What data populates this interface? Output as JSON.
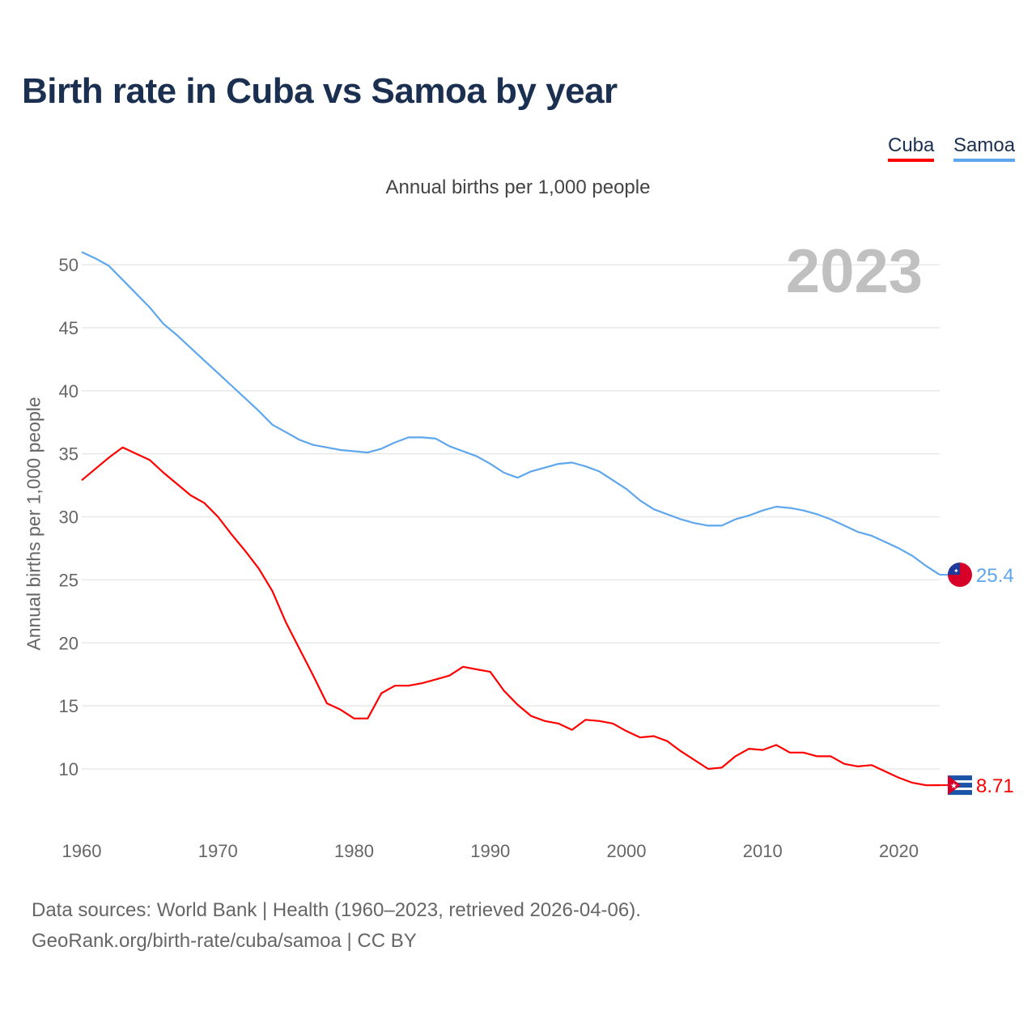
{
  "chart_data": {
    "type": "line",
    "title": "Birth rate in Cuba vs Samoa by year",
    "subtitle": "Annual births per 1,000 people",
    "ylabel": "Annual births per 1,000 people",
    "xlabel": "",
    "year_label": "2023",
    "xlim": [
      1960,
      2023
    ],
    "ylim": [
      6,
      52
    ],
    "yticks": [
      10,
      15,
      20,
      25,
      30,
      35,
      40,
      45,
      50
    ],
    "xticks": [
      1960,
      1970,
      1980,
      1990,
      2000,
      2010,
      2020
    ],
    "grid": true,
    "legend_position": "top-right",
    "x": [
      1960,
      1961,
      1962,
      1963,
      1964,
      1965,
      1966,
      1967,
      1968,
      1969,
      1970,
      1971,
      1972,
      1973,
      1974,
      1975,
      1976,
      1977,
      1978,
      1979,
      1980,
      1981,
      1982,
      1983,
      1984,
      1985,
      1986,
      1987,
      1988,
      1989,
      1990,
      1991,
      1992,
      1993,
      1994,
      1995,
      1996,
      1997,
      1998,
      1999,
      2000,
      2001,
      2002,
      2003,
      2004,
      2005,
      2006,
      2007,
      2008,
      2009,
      2010,
      2011,
      2012,
      2013,
      2014,
      2015,
      2016,
      2017,
      2018,
      2019,
      2020,
      2021,
      2022,
      2023
    ],
    "series": [
      {
        "name": "Cuba",
        "color": "#ff0000",
        "end_label": "8.71",
        "values": [
          32.9,
          33.8,
          34.7,
          35.5,
          35.0,
          34.5,
          33.5,
          32.6,
          31.7,
          31.1,
          30.0,
          28.6,
          27.3,
          25.9,
          24.1,
          21.6,
          19.5,
          17.4,
          15.2,
          14.7,
          14.0,
          14.0,
          16.0,
          16.6,
          16.6,
          16.8,
          17.1,
          17.4,
          18.1,
          17.9,
          17.7,
          16.2,
          15.1,
          14.2,
          13.8,
          13.6,
          13.1,
          13.9,
          13.8,
          13.6,
          13.0,
          12.5,
          12.6,
          12.2,
          11.4,
          10.7,
          10.0,
          10.1,
          11.0,
          11.6,
          11.5,
          11.9,
          11.3,
          11.3,
          11.0,
          11.0,
          10.4,
          10.2,
          10.3,
          9.8,
          9.3,
          8.9,
          8.7,
          8.71
        ]
      },
      {
        "name": "Samoa",
        "color": "#5ea6ee",
        "end_label": "25.4",
        "values": [
          51.0,
          50.5,
          49.9,
          48.8,
          47.7,
          46.6,
          45.3,
          44.4,
          43.4,
          42.4,
          41.4,
          40.4,
          39.4,
          38.4,
          37.3,
          36.7,
          36.1,
          35.7,
          35.5,
          35.3,
          35.2,
          35.1,
          35.4,
          35.9,
          36.3,
          36.3,
          36.2,
          35.6,
          35.2,
          34.8,
          34.2,
          33.5,
          33.1,
          33.6,
          33.9,
          34.2,
          34.3,
          34.0,
          33.6,
          32.9,
          32.2,
          31.3,
          30.6,
          30.2,
          29.8,
          29.5,
          29.3,
          29.3,
          29.8,
          30.1,
          30.5,
          30.8,
          30.7,
          30.5,
          30.2,
          29.8,
          29.3,
          28.8,
          28.5,
          28.0,
          27.5,
          26.9,
          26.1,
          25.4
        ]
      }
    ]
  },
  "footer": {
    "line1": "Data sources: World Bank | Health (1960–2023, retrieved 2026-04-06).",
    "line2": "GeoRank.org/birth-rate/cuba/samoa | CC BY"
  }
}
